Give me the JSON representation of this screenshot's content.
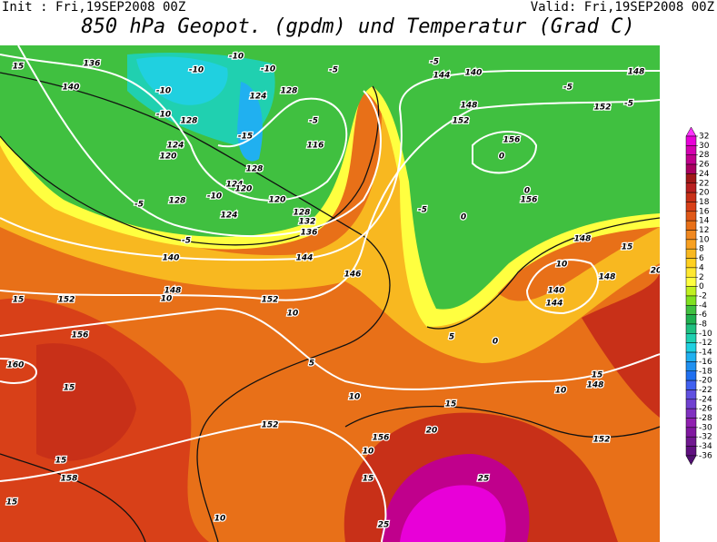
{
  "header": {
    "init": "Init : Fri,19SEP2008 00Z",
    "valid": "Valid: Fri,19SEP2008 00Z",
    "title": "850 hPa Geopot. (gpdm) und Temperatur (Grad C)"
  },
  "map": {
    "labels": [
      "15",
      "136",
      "140",
      "-10",
      "-10",
      "-10",
      "-10",
      "124",
      "128",
      "-5",
      "-5",
      "144",
      "140",
      "148",
      "-5",
      "152",
      "-5",
      "148",
      "152",
      "-10",
      "128",
      "-5",
      "-15",
      "116",
      "124",
      "120",
      "156",
      "0",
      "128",
      "124",
      "120",
      "-5",
      "-10",
      "128",
      "120",
      "156",
      "0",
      "124",
      "128",
      "132",
      "136",
      "-5",
      "0",
      "148",
      "15",
      "-5",
      "140",
      "144",
      "146",
      "10",
      "148",
      "20",
      "15",
      "152",
      "148",
      "10",
      "152",
      "10",
      "140",
      "144",
      "156",
      "5",
      "0",
      "160",
      "5",
      "15",
      "10",
      "15",
      "148",
      "10",
      "15",
      "20",
      "156",
      "152",
      "152",
      "15",
      "158",
      "10",
      "15",
      "25",
      "15",
      "10",
      "25"
    ]
  },
  "colorbar": {
    "levels": [
      32,
      30,
      28,
      26,
      24,
      22,
      20,
      18,
      16,
      14,
      12,
      10,
      8,
      6,
      4,
      2,
      0,
      -2,
      -4,
      -6,
      -8,
      -10,
      -12,
      -14,
      -16,
      -18,
      -20,
      -22,
      -24,
      -26,
      -28,
      -30,
      -32,
      -34,
      -36
    ],
    "colors": [
      "#ff33ff",
      "#e800d8",
      "#d400b0",
      "#c0008c",
      "#a80060",
      "#a01818",
      "#b82020",
      "#c83018",
      "#d84018",
      "#e05818",
      "#e87018",
      "#f08820",
      "#f8a020",
      "#f8b820",
      "#ffd020",
      "#ffe830",
      "#ffff40",
      "#c0f020",
      "#80e020",
      "#40c040",
      "#20b050",
      "#20c080",
      "#20d0b0",
      "#20d0e0",
      "#20b0f0",
      "#2090f0",
      "#2070f0",
      "#4060f0",
      "#6050e0",
      "#7040d0",
      "#8030c0",
      "#9020b0",
      "#8018a0",
      "#701890",
      "#601080",
      "#501070"
    ]
  }
}
